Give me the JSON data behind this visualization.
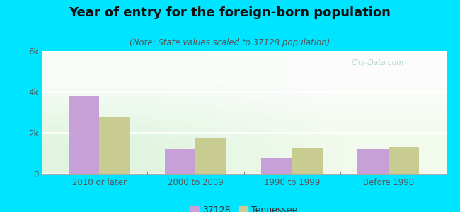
{
  "title": "Year of entry for the foreign-born population",
  "subtitle": "(Note: State values scaled to 37128 population)",
  "categories": [
    "2010 or later",
    "2000 to 2009",
    "1990 to 1999",
    "Before 1990"
  ],
  "values_37128": [
    3800,
    1200,
    800,
    1200
  ],
  "values_tennessee": [
    2750,
    1750,
    1250,
    1300
  ],
  "color_37128": "#c8a0d8",
  "color_tennessee": "#c8cc90",
  "background_outer": "#00e5ff",
  "ylim": [
    0,
    6000
  ],
  "yticks": [
    0,
    2000,
    4000,
    6000
  ],
  "ytick_labels": [
    "0",
    "2k",
    "4k",
    "6k"
  ],
  "legend_label_37128": "37128",
  "legend_label_tennessee": "Tennessee",
  "bar_width": 0.32,
  "title_fontsize": 13,
  "subtitle_fontsize": 8.5,
  "tick_fontsize": 8.5,
  "legend_fontsize": 9
}
